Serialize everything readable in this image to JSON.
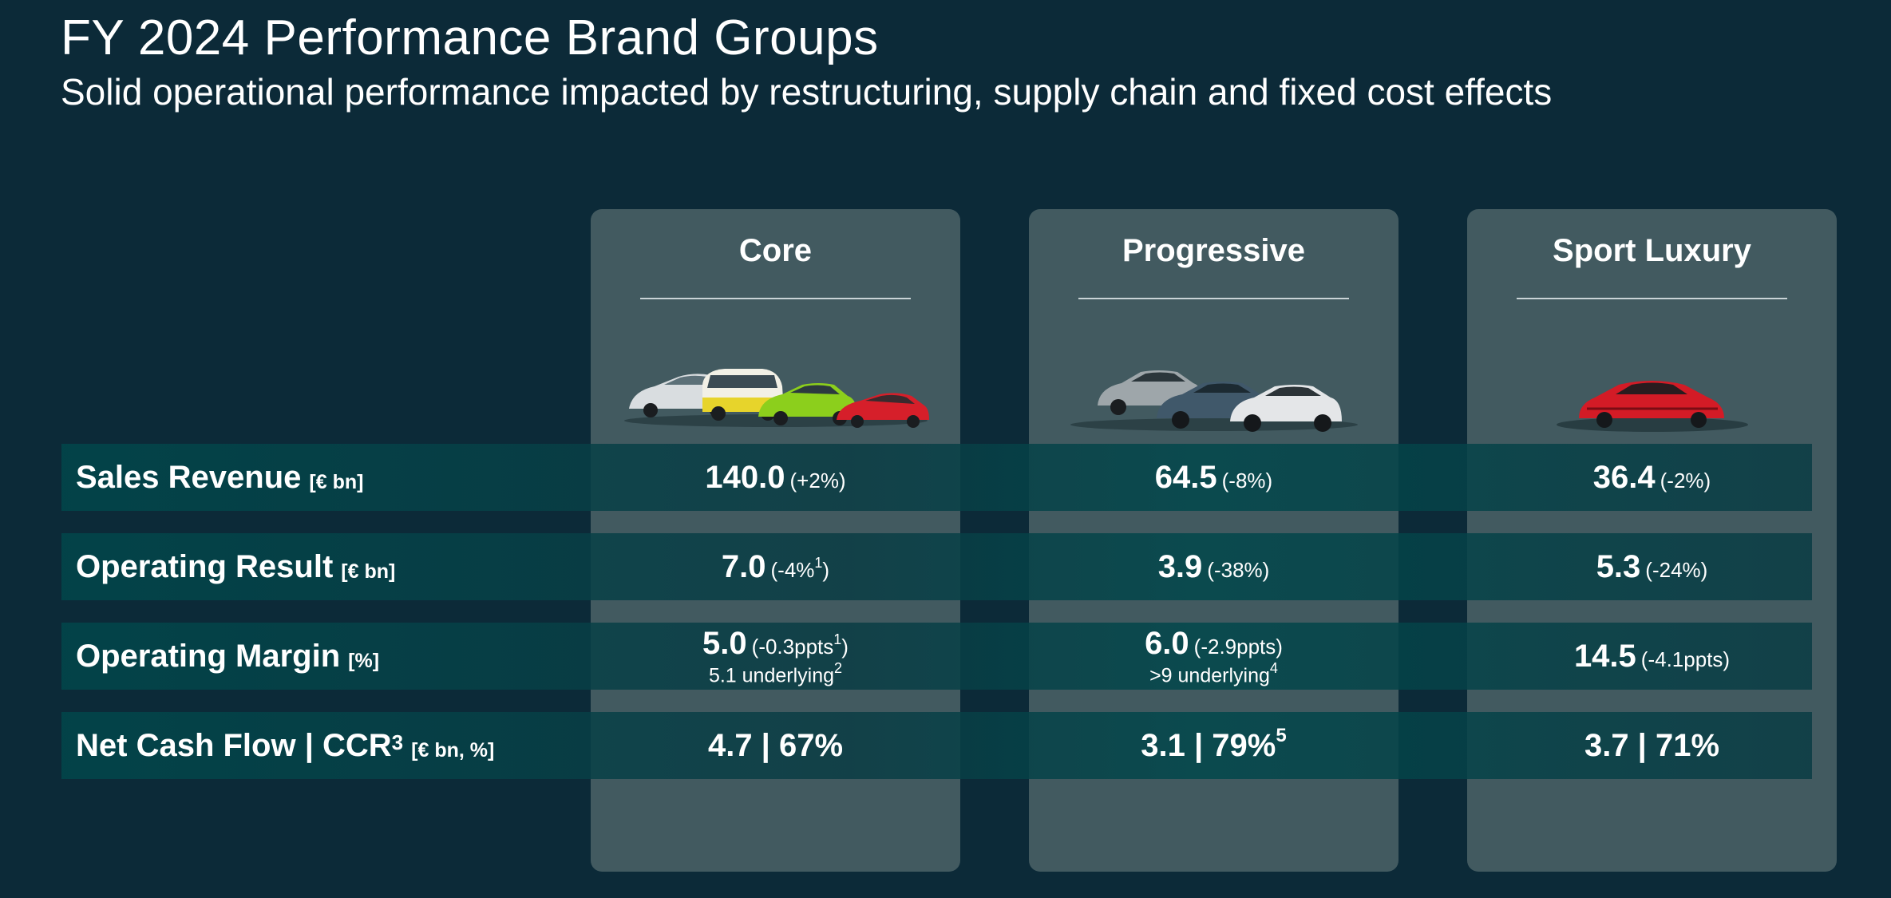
{
  "header": {
    "title": "FY 2024 Performance Brand Groups",
    "subtitle": "Solid operational performance impacted by restructuring, supply chain and fixed cost effects"
  },
  "columns": [
    {
      "name": "Core",
      "image": "core-cars-image"
    },
    {
      "name": "Progressive",
      "image": "progressive-cars-image"
    },
    {
      "name": "Sport Luxury",
      "image": "sport-luxury-car-image"
    }
  ],
  "rows": [
    {
      "label": "Sales Revenue",
      "unit": "[€ bn]",
      "cells": [
        {
          "main": "140.0",
          "change": "(+2%)"
        },
        {
          "main": "64.5",
          "change": "(-8%)"
        },
        {
          "main": "36.4",
          "change": "(-2%)"
        }
      ]
    },
    {
      "label": "Operating Result",
      "unit": "[€ bn]",
      "cells": [
        {
          "main": "7.0",
          "change": "(-4%",
          "change_sup": "1",
          "change_close": ")"
        },
        {
          "main": "3.9",
          "change": "(-38%)"
        },
        {
          "main": "5.3",
          "change": "(-24%)"
        }
      ]
    },
    {
      "label": "Operating Margin",
      "unit": "[%]",
      "cells": [
        {
          "main": "5.0",
          "change": "(-0.3ppts",
          "change_sup": "1",
          "change_close": ")",
          "sub": "5.1 underlying",
          "sub_sup": "2"
        },
        {
          "main": "6.0",
          "change": "(-2.9ppts)",
          "sub": ">9 underlying",
          "sub_sup": "4"
        },
        {
          "main": "14.5",
          "change": "(-4.1ppts)"
        }
      ]
    },
    {
      "label": "Net Cash Flow | CCR",
      "label_sup": "3",
      "unit": "[€ bn, %]",
      "cells": [
        {
          "main": "4.7 | 67%"
        },
        {
          "main": "3.1 | 79%",
          "main_sup": "5"
        },
        {
          "main": "3.7 | 71%"
        }
      ]
    }
  ],
  "colors": {
    "background": "#0c2a38",
    "column_panel": "#425a60",
    "row_band": "#01474b",
    "text": "#ffffff"
  }
}
